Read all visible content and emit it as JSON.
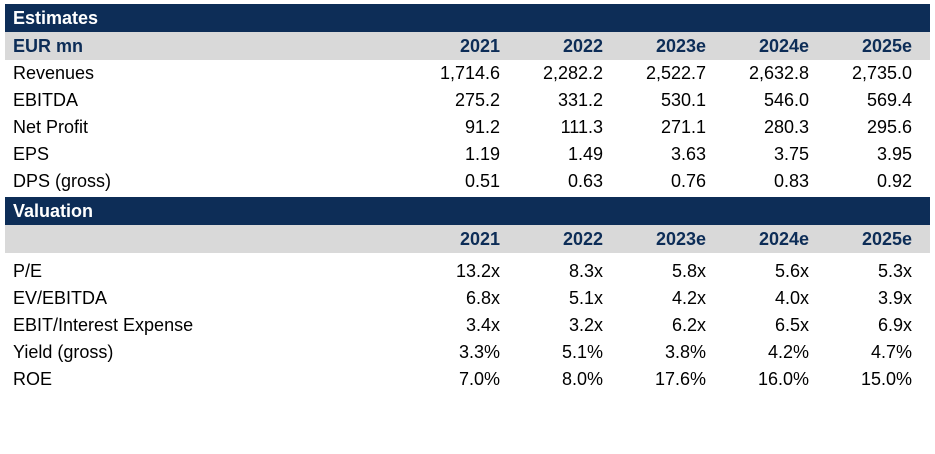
{
  "estimates": {
    "title": "Estimates",
    "header": {
      "label": "EUR mn",
      "years": [
        "2021",
        "2022",
        "2023e",
        "2024e",
        "2025e"
      ]
    },
    "rows": [
      {
        "label": "Revenues",
        "values": [
          "1,714.6",
          "2,282.2",
          "2,522.7",
          "2,632.8",
          "2,735.0"
        ]
      },
      {
        "label": "EBITDA",
        "values": [
          "275.2",
          "331.2",
          "530.1",
          "546.0",
          "569.4"
        ]
      },
      {
        "label": "Net Profit",
        "values": [
          "91.2",
          "111.3",
          "271.1",
          "280.3",
          "295.6"
        ]
      },
      {
        "label": "EPS",
        "values": [
          "1.19",
          "1.49",
          "3.63",
          "3.75",
          "3.95"
        ]
      },
      {
        "label": "DPS (gross)",
        "values": [
          "0.51",
          "0.63",
          "0.76",
          "0.83",
          "0.92"
        ]
      }
    ]
  },
  "valuation": {
    "title": "Valuation",
    "header": {
      "label": "",
      "years": [
        "2021",
        "2022",
        "2023e",
        "2024e",
        "2025e"
      ]
    },
    "rows": [
      {
        "label": "P/E",
        "values": [
          "13.2x",
          "8.3x",
          "5.8x",
          "5.6x",
          "5.3x"
        ]
      },
      {
        "label": "EV/EBITDA",
        "values": [
          "6.8x",
          "5.1x",
          "4.2x",
          "4.0x",
          "3.9x"
        ]
      },
      {
        "label": "EBIT/Interest Expense",
        "values": [
          "3.4x",
          "3.2x",
          "6.2x",
          "6.5x",
          "6.9x"
        ]
      },
      {
        "label": "Yield (gross)",
        "values": [
          "3.3%",
          "5.1%",
          "3.8%",
          "4.2%",
          "4.7%"
        ]
      },
      {
        "label": "ROE",
        "values": [
          "7.0%",
          "8.0%",
          "17.6%",
          "16.0%",
          "15.0%"
        ]
      }
    ]
  },
  "colors": {
    "navy": "#0d2d57",
    "header_grey": "#d9d9d9"
  }
}
